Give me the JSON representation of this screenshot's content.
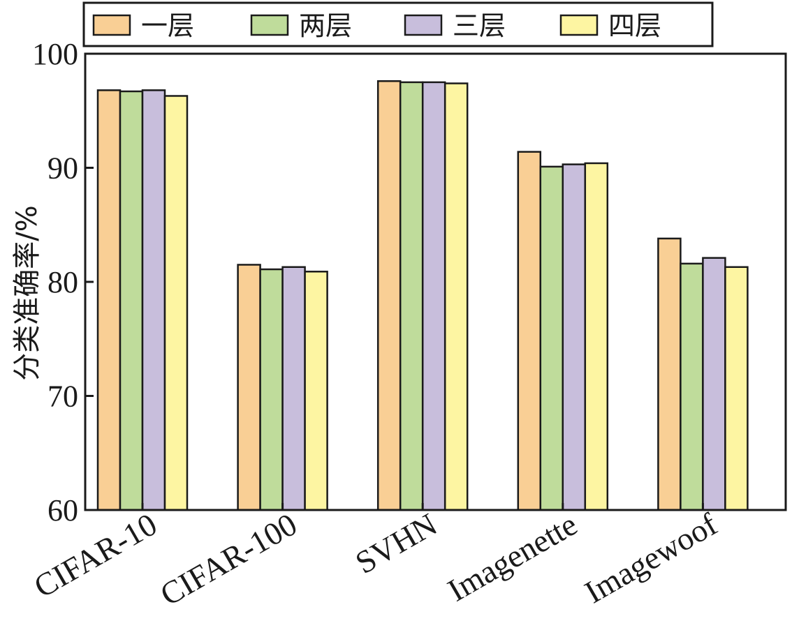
{
  "chart_data": {
    "type": "bar",
    "categories": [
      "CIFAR-10",
      "CIFAR-100",
      "SVHN",
      "Imagenette",
      "Imagewoof"
    ],
    "series": [
      {
        "name": "一层",
        "color": "#f9cf95",
        "values": [
          96.8,
          81.5,
          97.6,
          91.4,
          83.8
        ]
      },
      {
        "name": "两层",
        "color": "#bfdc9b",
        "values": [
          96.7,
          81.1,
          97.5,
          90.1,
          81.6
        ]
      },
      {
        "name": "三层",
        "color": "#c8bedc",
        "values": [
          96.8,
          81.3,
          97.5,
          90.3,
          82.1
        ]
      },
      {
        "name": "四层",
        "color": "#fdf5a2",
        "values": [
          96.3,
          80.9,
          97.4,
          90.4,
          81.3
        ]
      }
    ],
    "xlabel": "",
    "ylabel": "分类准确率/%",
    "ylim": [
      60,
      100
    ],
    "yticks": [
      60,
      70,
      80,
      90,
      100
    ],
    "grid": false,
    "legend_position": "top"
  }
}
